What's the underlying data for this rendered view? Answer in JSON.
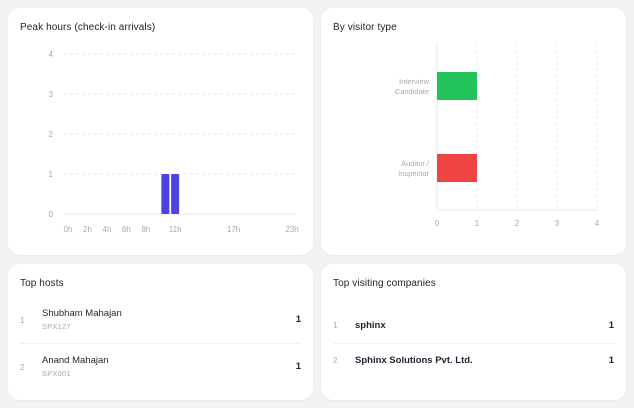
{
  "colors": {
    "peak_bar": "#4b44e0",
    "interview_candidate": "#22c35a",
    "auditor_inspector": "#ef4444",
    "grid": "#e8eaee",
    "tick_text": "#a3a8b3"
  },
  "peak_hours": {
    "title": "Peak hours (check-in arrivals)",
    "chart_data": {
      "type": "bar",
      "title": "Peak hours (check-in arrivals)",
      "x": [
        "10h",
        "11h"
      ],
      "values": [
        1,
        1
      ],
      "x_tick_labels": [
        "0h",
        "2h",
        "4h",
        "6h",
        "8h",
        "11h",
        "17h",
        "23h"
      ],
      "y_tick_labels": [
        "0",
        "1",
        "2",
        "3",
        "4"
      ],
      "ylim": [
        0,
        4
      ],
      "grid": true
    }
  },
  "visitor_type": {
    "title": "By visitor type",
    "chart_data": {
      "type": "bar",
      "orientation": "horizontal",
      "title": "By visitor type",
      "categories": [
        "Interview Candidate",
        "Auditor / Inspector"
      ],
      "category_lines": [
        [
          "Interview",
          "Candidate"
        ],
        [
          "Auditor /",
          "Inspector"
        ]
      ],
      "values": [
        1,
        1
      ],
      "colors": [
        "#22c35a",
        "#ef4444"
      ],
      "x_tick_labels": [
        "0",
        "1",
        "2",
        "3",
        "4"
      ],
      "xlim": [
        0,
        4
      ],
      "grid": true
    }
  },
  "top_hosts": {
    "title": "Top hosts",
    "rows": [
      {
        "index": "1",
        "name": "Shubham Mahajan",
        "code": "SPX127",
        "count": "1"
      },
      {
        "index": "2",
        "name": "Anand Mahajan",
        "code": "SPX001",
        "count": "1"
      }
    ]
  },
  "top_companies": {
    "title": "Top visiting companies",
    "rows": [
      {
        "index": "1",
        "name": "sphinx",
        "count": "1"
      },
      {
        "index": "2",
        "name": "Sphinx Solutions Pvt. Ltd.",
        "count": "1"
      }
    ]
  }
}
